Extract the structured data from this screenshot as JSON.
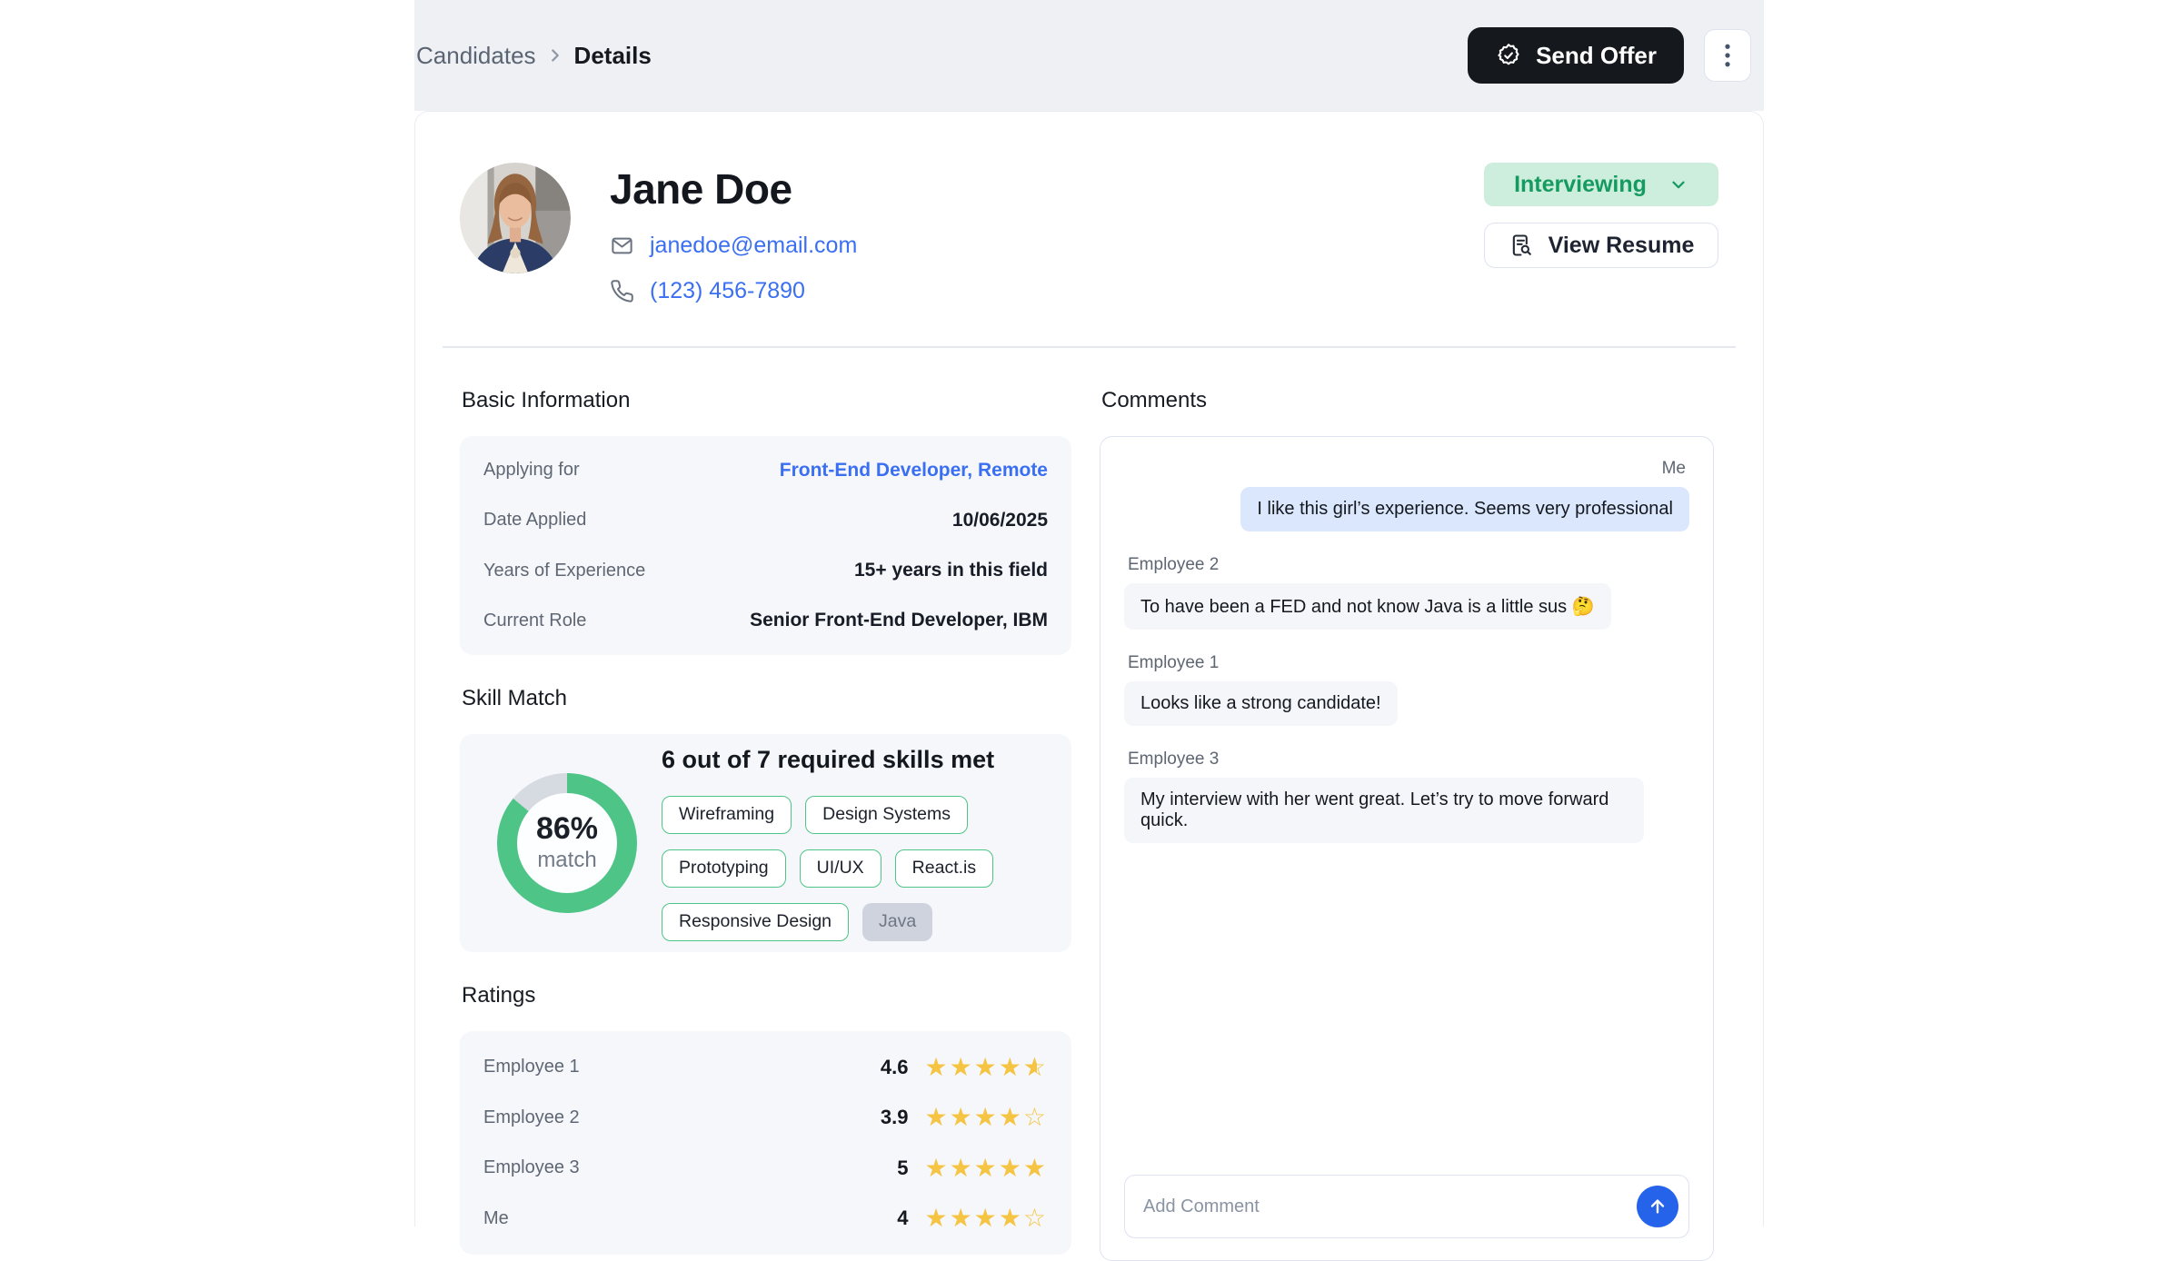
{
  "breadcrumb": {
    "parent": "Candidates",
    "current": "Details"
  },
  "header_actions": {
    "send_offer": "Send Offer"
  },
  "profile": {
    "name": "Jane Doe",
    "email": "janedoe@email.com",
    "phone": "(123) 456-7890",
    "status": "Interviewing",
    "view_resume": "View Resume"
  },
  "basic_info": {
    "title": "Basic Information",
    "rows": [
      {
        "label": "Applying for",
        "value": "Front-End Developer, Remote",
        "state": "link",
        "clickable": "true"
      },
      {
        "label": "Date Applied",
        "value": "10/06/2025",
        "state": "plain",
        "clickable": "false"
      },
      {
        "label": "Years of Experience",
        "value": "15+ years in this field",
        "state": "plain",
        "clickable": "false"
      },
      {
        "label": "Current Role",
        "value": "Senior Front-End Developer, IBM",
        "state": "plain",
        "clickable": "false"
      }
    ]
  },
  "skill_match": {
    "title": "Skill Match",
    "headline": "6 out of 7 required skills met",
    "match_percent": 86,
    "percent_label": "86%",
    "match_label": "match",
    "skills": [
      {
        "label": "Wireframing",
        "state": "met"
      },
      {
        "label": "Design Systems",
        "state": "met"
      },
      {
        "label": "Prototyping",
        "state": "met"
      },
      {
        "label": "UI/UX",
        "state": "met"
      },
      {
        "label": "React.is",
        "state": "met"
      },
      {
        "label": "Responsive Design",
        "state": "met"
      },
      {
        "label": "Java",
        "state": "missing"
      }
    ]
  },
  "ratings": {
    "title": "Ratings",
    "rows": [
      {
        "name": "Employee 1",
        "score": "4.6",
        "stars": 4.5
      },
      {
        "name": "Employee 2",
        "score": "3.9",
        "stars": 4
      },
      {
        "name": "Employee 3",
        "score": "5",
        "stars": 5
      },
      {
        "name": "Me",
        "score": "4",
        "stars": 4
      }
    ]
  },
  "comments": {
    "title": "Comments",
    "messages": [
      {
        "author": "Me",
        "align": "right",
        "text": "I like this girl’s experience. Seems very professional"
      },
      {
        "author": "Employee 2",
        "align": "left",
        "text": "To have been a FED and not know Java is a little sus 🤔"
      },
      {
        "author": "Employee 1",
        "align": "left",
        "text": "Looks like a strong candidate!"
      },
      {
        "author": "Employee 3",
        "align": "left",
        "text": "My interview with her went great. Let’s try to move forward quick."
      }
    ],
    "input_placeholder": "Add Comment"
  },
  "colors": {
    "band_bg": "#eef0f4",
    "card_border": "#e9edf3",
    "panel_bg": "#f5f7fb",
    "border_soft": "#dfe3ef",
    "divider": "#e4e8ef",
    "dark_btn": "#15181d",
    "link_blue": "#3b6ff2",
    "green_text": "#159a60",
    "green_pill": "#cdeedd",
    "chip_border": "#4ec487",
    "chip_missing_bg": "#ced3dd",
    "chip_missing_text": "#6f7684",
    "donut_green": "#4ec487",
    "donut_track": "#d6dae1",
    "donut_hole": "#fdfeff",
    "star": "#f6c443",
    "me_bubble": "#dbe7fd",
    "peer_bubble": "#f4f6fa",
    "send_blue": "#2563eb"
  }
}
